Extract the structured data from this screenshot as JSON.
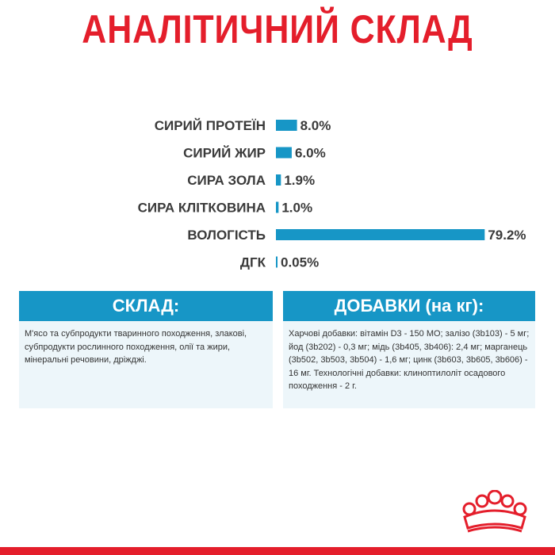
{
  "title": "АНАЛІТИЧНИЙ СКЛАД",
  "colors": {
    "brand_red": "#e41e2b",
    "bar_blue": "#1796c6",
    "panel_bg": "#edf6fa",
    "label_text": "#3a3a3a"
  },
  "chart_data": {
    "type": "bar",
    "orientation": "horizontal",
    "categories": [
      "СИРИЙ ПРОТЕЇН",
      "СИРИЙ ЖИР",
      "СИРА ЗОЛА",
      "СИРА КЛІТКОВИНА",
      "ВОЛОГІСТЬ",
      "ДГК"
    ],
    "values": [
      8.0,
      6.0,
      1.9,
      1.0,
      79.2,
      0.05
    ],
    "value_labels": [
      "8.0%",
      "6.0%",
      "1.9%",
      "1.0%",
      "79.2%",
      "0.05%"
    ],
    "unit": "%",
    "xlim": [
      0,
      80
    ],
    "grid": false,
    "legend": "none"
  },
  "composition": {
    "heading": "СКЛАД:",
    "text": "М'ясо та субпродукти тваринного походження, злакові, субпродукти рослинного походження, олії та жири, мінеральні речовини, дріжджі."
  },
  "additives": {
    "heading": "ДОБАВКИ (на кг):",
    "text": "Харчові добавки: вітамін D3 - 150 МО; залізо (3b103) - 5 мг; йод (3b202) - 0,3 мг; мідь (3b405, 3b406): 2,4 мг; марганець (3b502, 3b503, 3b504) - 1,6 мг; цинк (3b603, 3b605, 3b606) - 16 мг. Технологічні добавки: клиноптилоліт осадового походження - 2 г."
  },
  "logo": {
    "icon": "royal-crown-icon"
  }
}
